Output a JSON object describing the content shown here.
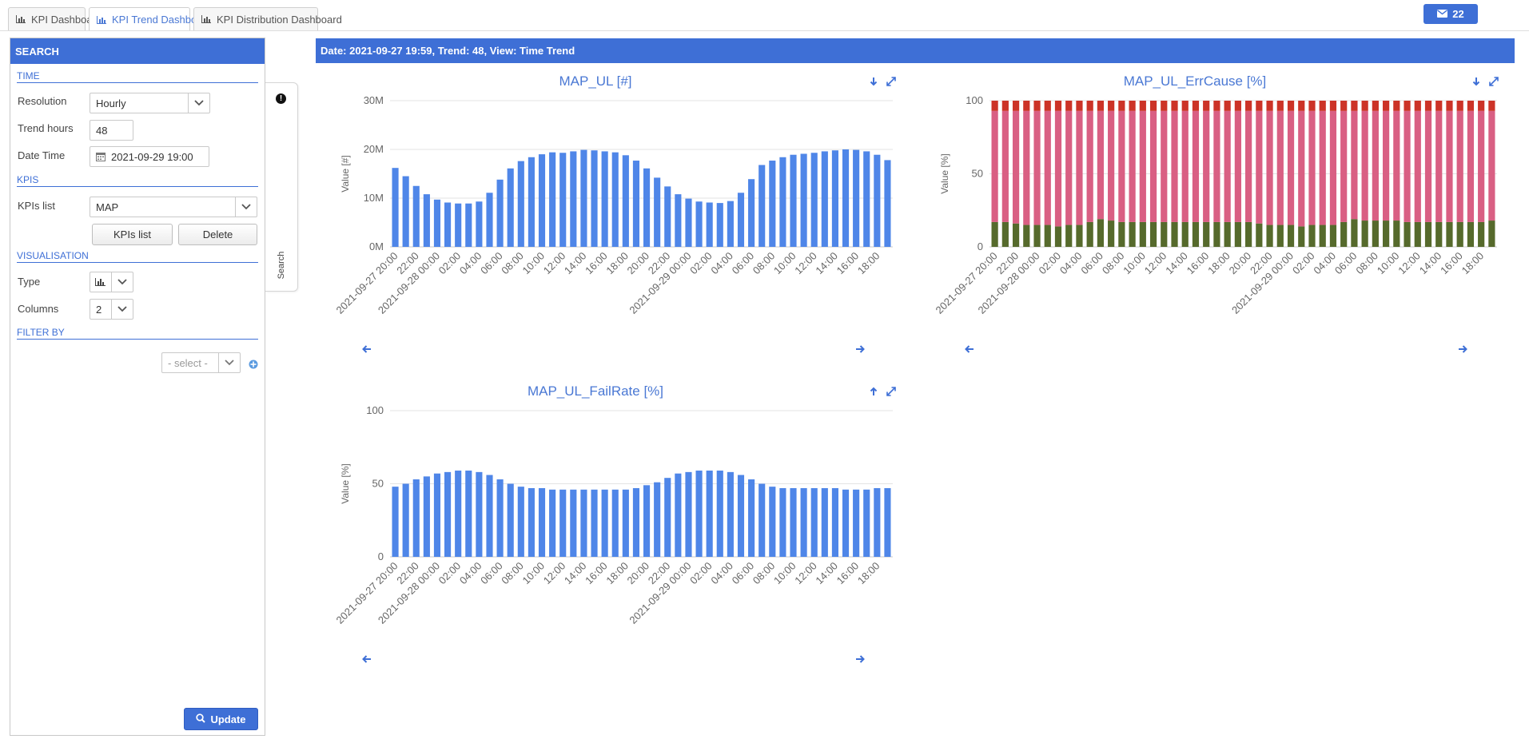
{
  "tabs": [
    {
      "label": "KPI Dashboard",
      "active": false
    },
    {
      "label": "KPI Trend Dashboard",
      "active": true
    },
    {
      "label": "KPI Distribution Dashboard",
      "active": false
    }
  ],
  "messages": {
    "count": "22",
    "icon": "envelope-icon"
  },
  "search_panel": {
    "header": "SEARCH",
    "time_section": "TIME",
    "resolution_label": "Resolution",
    "resolution_value": "Hourly",
    "trend_hours_label": "Trend hours",
    "trend_hours_value": "48",
    "date_time_label": "Date Time",
    "date_time_value": "2021-09-29 19:00",
    "kpis_section": "KPIS",
    "kpis_list_label": "KPIs list",
    "kpis_list_value": "MAP",
    "kpis_list_button": "KPIs list",
    "delete_button": "Delete",
    "visualisation_section": "VISUALISATION",
    "type_label": "Type",
    "columns_label": "Columns",
    "columns_value": "2",
    "filter_section": "FILTER BY",
    "filter_placeholder": "- select -",
    "update_button": "Update"
  },
  "side_tab": {
    "label": "Search"
  },
  "banner": "Date: 2021-09-27 19:59, Trend: 48, View: Time Trend",
  "colors": {
    "accent": "#3e6fd6",
    "bar_blue": "#4f86e8",
    "err_green": "#566a2c",
    "err_pink": "#d95f83",
    "err_red": "#cc3327"
  },
  "chart_data": [
    {
      "type": "bar",
      "title": "MAP_UL [#]",
      "ylabel": "Value [#]",
      "xlabel": "",
      "ylim": [
        0,
        30
      ],
      "yticks": [
        "0M",
        "10M",
        "20M",
        "30M"
      ],
      "tick_labels": [
        "2021-09-27 20:00",
        "22:00",
        "2021-09-28 00:00",
        "02:00",
        "04:00",
        "06:00",
        "08:00",
        "10:00",
        "12:00",
        "14:00",
        "16:00",
        "18:00",
        "20:00",
        "22:00",
        "2021-09-29 00:00",
        "02:00",
        "04:00",
        "06:00",
        "08:00",
        "10:00",
        "12:00",
        "14:00",
        "16:00",
        "18:00"
      ],
      "series": [
        {
          "values": [
            16.2,
            14.5,
            12.5,
            10.8,
            9.7,
            9.1,
            8.9,
            8.9,
            9.3,
            11.1,
            13.8,
            16.1,
            17.6,
            18.4,
            19.0,
            19.4,
            19.3,
            19.6,
            19.9,
            19.8,
            19.6,
            19.4,
            18.8,
            17.7,
            16.1,
            14.2,
            12.4,
            10.8,
            9.9,
            9.3,
            9.1,
            9.0,
            9.4,
            11.1,
            13.9,
            16.8,
            17.7,
            18.4,
            18.9,
            19.1,
            19.3,
            19.6,
            19.8,
            20.0,
            19.9,
            19.6,
            18.9,
            17.8
          ]
        }
      ]
    },
    {
      "type": "bar",
      "stacked": true,
      "title": "MAP_UL_ErrCause [%]",
      "ylabel": "Value [%]",
      "xlabel": "",
      "ylim": [
        0,
        100
      ],
      "yticks": [
        "0",
        "50",
        "100"
      ],
      "tick_labels": [
        "2021-09-27 20:00",
        "22:00",
        "2021-09-28 00:00",
        "02:00",
        "04:00",
        "06:00",
        "08:00",
        "10:00",
        "12:00",
        "14:00",
        "16:00",
        "18:00",
        "20:00",
        "22:00",
        "2021-09-29 00:00",
        "02:00",
        "04:00",
        "06:00",
        "08:00",
        "10:00",
        "12:00",
        "14:00",
        "16:00",
        "18:00"
      ],
      "series": [
        {
          "values": [
            17,
            17,
            16,
            15,
            15,
            15,
            14,
            15,
            15,
            17,
            19,
            18,
            17,
            17,
            17,
            17,
            17,
            17,
            17,
            17,
            17,
            17,
            17,
            17,
            17,
            16,
            15,
            15,
            15,
            14,
            15,
            15,
            15,
            17,
            19,
            18,
            18,
            18,
            18,
            17,
            17,
            17,
            17,
            17,
            17,
            17,
            17,
            18
          ]
        },
        {
          "values": [
            76,
            76,
            77,
            78,
            78,
            78,
            79,
            78,
            78,
            76,
            74,
            75,
            76,
            76,
            76,
            76,
            76,
            76,
            76,
            76,
            76,
            76,
            76,
            76,
            76,
            77,
            78,
            78,
            78,
            79,
            78,
            78,
            78,
            76,
            74,
            75,
            75,
            75,
            75,
            76,
            76,
            76,
            76,
            76,
            76,
            76,
            76,
            75
          ]
        },
        {
          "values": [
            7,
            7,
            7,
            7,
            7,
            7,
            7,
            7,
            7,
            7,
            7,
            7,
            7,
            7,
            7,
            7,
            7,
            7,
            7,
            7,
            7,
            7,
            7,
            7,
            7,
            7,
            7,
            7,
            7,
            7,
            7,
            7,
            7,
            7,
            7,
            7,
            7,
            7,
            7,
            7,
            7,
            7,
            7,
            7,
            7,
            7,
            7,
            7
          ]
        }
      ]
    },
    {
      "type": "bar",
      "title": "MAP_UL_FailRate [%]",
      "ylabel": "Value [%]",
      "xlabel": "",
      "ylim": [
        0,
        100
      ],
      "yticks": [
        "0",
        "50",
        "100"
      ],
      "tick_labels": [
        "2021-09-27 20:00",
        "22:00",
        "2021-09-28 00:00",
        "02:00",
        "04:00",
        "06:00",
        "08:00",
        "10:00",
        "12:00",
        "14:00",
        "16:00",
        "18:00",
        "20:00",
        "22:00",
        "2021-09-29 00:00",
        "02:00",
        "04:00",
        "06:00",
        "08:00",
        "10:00",
        "12:00",
        "14:00",
        "16:00",
        "18:00"
      ],
      "series": [
        {
          "values": [
            48,
            50,
            53,
            55,
            57,
            58,
            59,
            59,
            58,
            56,
            53,
            50,
            48,
            47,
            47,
            46,
            46,
            46,
            46,
            46,
            46,
            46,
            46,
            47,
            49,
            51,
            54,
            57,
            58,
            59,
            59,
            59,
            58,
            56,
            53,
            50,
            48,
            47,
            47,
            47,
            47,
            47,
            47,
            46,
            46,
            46,
            47,
            47
          ]
        }
      ]
    }
  ]
}
